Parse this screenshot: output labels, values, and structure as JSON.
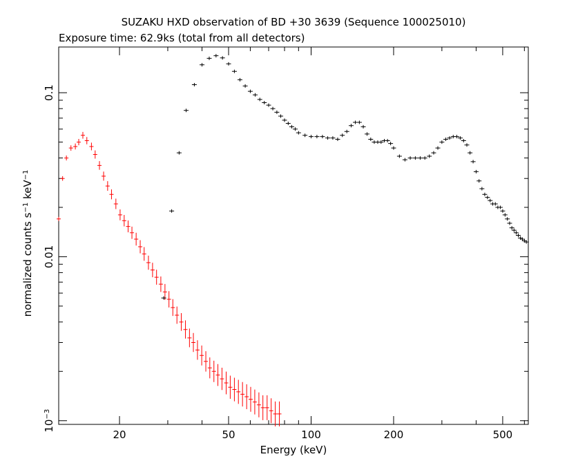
{
  "chart_data": {
    "type": "scatter",
    "title": "SUZAKU HXD observation of BD +30 3639 (Sequence 100025010)",
    "subtitle": "Exposure time: 62.9ks (total from all detectors)",
    "xlabel": "Energy (keV)",
    "ylabel": {
      "prefix": "normalized counts s",
      "exp1": "−1",
      "middle": " keV",
      "exp2": "−1"
    },
    "x_scale": "log",
    "y_scale": "log",
    "xlim": [
      12,
      620
    ],
    "ylim": [
      0.00095,
      0.19
    ],
    "x_ticks": [
      {
        "value": 20,
        "label": "20"
      },
      {
        "value": 50,
        "label": "50"
      },
      {
        "value": 100,
        "label": "100"
      },
      {
        "value": 200,
        "label": "200"
      },
      {
        "value": 500,
        "label": "500"
      }
    ],
    "y_ticks": [
      {
        "value": 0.001,
        "label_base": "10",
        "label_exp": "−3"
      },
      {
        "value": 0.01,
        "label_base": "0.01",
        "label_exp": ""
      },
      {
        "value": 0.1,
        "label_base": "0.1",
        "label_exp": ""
      }
    ],
    "grid": false,
    "series": [
      {
        "color": "#ff0000",
        "x": [
          12.0,
          12.4,
          12.8,
          13.3,
          13.8,
          14.2,
          14.7,
          15.2,
          15.8,
          16.3,
          16.9,
          17.5,
          18.1,
          18.7,
          19.4,
          20.1,
          20.8,
          21.5,
          22.2,
          23.0,
          23.8,
          24.6,
          25.5,
          26.4,
          27.3,
          28.3,
          29.3,
          30.3,
          31.3,
          32.4,
          33.6,
          34.8,
          36.0,
          37.2,
          38.5,
          39.9,
          41.3,
          42.7,
          44.2,
          45.7,
          47.3,
          49.0,
          50.7,
          52.5,
          54.3,
          56.2,
          58.2,
          60.2,
          62.3,
          64.5,
          66.7,
          69.1,
          71.5,
          74.0,
          76.6
        ],
        "y": [
          0.017,
          0.03,
          0.04,
          0.046,
          0.047,
          0.05,
          0.055,
          0.051,
          0.047,
          0.042,
          0.036,
          0.031,
          0.027,
          0.024,
          0.021,
          0.018,
          0.0166,
          0.0153,
          0.014,
          0.0128,
          0.0115,
          0.0104,
          0.0092,
          0.0083,
          0.0075,
          0.0068,
          0.0061,
          0.0055,
          0.0049,
          0.0044,
          0.004,
          0.0036,
          0.0032,
          0.003,
          0.0027,
          0.0025,
          0.0023,
          0.0021,
          0.002,
          0.0019,
          0.0018,
          0.0017,
          0.0016,
          0.00155,
          0.0015,
          0.00145,
          0.0014,
          0.00135,
          0.0013,
          0.00125,
          0.0012,
          0.0012,
          0.00115,
          0.0011,
          0.0011
        ]
      },
      {
        "color": "#000000",
        "x": [
          29.0,
          31.0,
          33.0,
          35.0,
          37.5,
          40.0,
          42.5,
          45.0,
          47.5,
          50.0,
          52.5,
          55.0,
          57.5,
          60.0,
          62.5,
          65.0,
          67.5,
          70.0,
          72.5,
          75.0,
          77.5,
          80.0,
          82.5,
          85.0,
          87.5,
          90.0,
          95.0,
          100.0,
          105.0,
          110.0,
          115.0,
          120.0,
          125.0,
          130.0,
          135.0,
          140.0,
          145.0,
          150.0,
          155.0,
          160.0,
          165.0,
          170.0,
          175.0,
          180.0,
          185.0,
          190.0,
          195.0,
          200.0,
          210.0,
          220.0,
          230.0,
          240.0,
          250.0,
          260.0,
          270.0,
          280.0,
          290.0,
          300.0,
          310.0,
          320.0,
          330.0,
          340.0,
          350.0,
          360.0,
          370.0,
          380.0,
          390.0,
          400.0,
          410.0,
          420.0,
          430.0,
          440.0,
          450.0,
          460.0,
          470.0,
          480.0,
          490.0,
          500.0,
          510.0,
          520.0,
          530.0,
          540.0,
          550.0,
          560.0,
          570.0,
          580.0,
          590.0,
          600.0,
          610.0
        ],
        "y": [
          0.0056,
          0.019,
          0.043,
          0.078,
          0.112,
          0.148,
          0.162,
          0.168,
          0.163,
          0.15,
          0.135,
          0.12,
          0.11,
          0.102,
          0.097,
          0.091,
          0.087,
          0.084,
          0.08,
          0.076,
          0.072,
          0.068,
          0.065,
          0.062,
          0.06,
          0.057,
          0.055,
          0.054,
          0.054,
          0.054,
          0.053,
          0.053,
          0.052,
          0.055,
          0.058,
          0.063,
          0.066,
          0.066,
          0.062,
          0.056,
          0.052,
          0.05,
          0.05,
          0.05,
          0.051,
          0.051,
          0.049,
          0.046,
          0.041,
          0.039,
          0.04,
          0.04,
          0.04,
          0.04,
          0.041,
          0.043,
          0.046,
          0.05,
          0.052,
          0.053,
          0.054,
          0.054,
          0.053,
          0.051,
          0.048,
          0.043,
          0.038,
          0.033,
          0.029,
          0.026,
          0.024,
          0.023,
          0.022,
          0.021,
          0.021,
          0.02,
          0.02,
          0.019,
          0.018,
          0.017,
          0.016,
          0.015,
          0.0145,
          0.014,
          0.0135,
          0.013,
          0.0128,
          0.0125,
          0.0123
        ]
      }
    ]
  }
}
